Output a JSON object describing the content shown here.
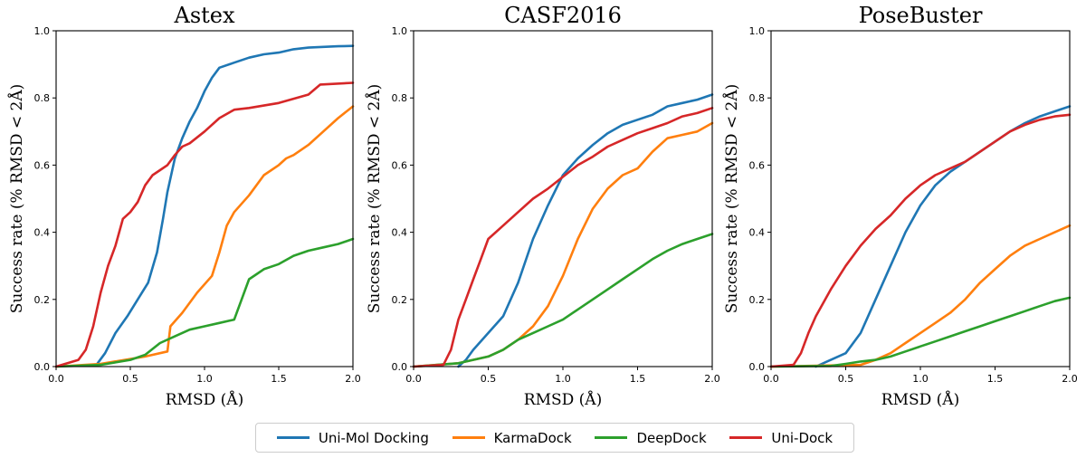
{
  "colors": {
    "uni_mol": "#1f77b4",
    "karma": "#ff7f0e",
    "deep": "#2ca02c",
    "uni_dock": "#d62728"
  },
  "legend": [
    {
      "name": "Uni-Mol Docking",
      "color": "#1f77b4"
    },
    {
      "name": "KarmaDock",
      "color": "#ff7f0e"
    },
    {
      "name": "DeepDock",
      "color": "#2ca02c"
    },
    {
      "name": "Uni-Dock",
      "color": "#d62728"
    }
  ],
  "chart_data": [
    {
      "type": "line",
      "title": "Astex",
      "xlabel": "RMSD (Å)",
      "ylabel": "Success rate (% RMSD < 2Å)",
      "xlim": [
        0,
        2
      ],
      "ylim": [
        0,
        1
      ],
      "xticks": [
        "0.0",
        "0.5",
        "1.0",
        "1.5",
        "2.0"
      ],
      "yticks": [
        "0.0",
        "0.2",
        "0.4",
        "0.6",
        "0.8",
        "1.0"
      ],
      "series": [
        {
          "name": "Uni-Mol Docking",
          "x": [
            0.28,
            0.33,
            0.4,
            0.48,
            0.55,
            0.62,
            0.68,
            0.72,
            0.75,
            0.8,
            0.85,
            0.9,
            0.95,
            1.0,
            1.05,
            1.1,
            1.2,
            1.3,
            1.4,
            1.5,
            1.6,
            1.7,
            1.8,
            1.9,
            2.0
          ],
          "y": [
            0.01,
            0.04,
            0.1,
            0.15,
            0.2,
            0.25,
            0.34,
            0.44,
            0.52,
            0.62,
            0.68,
            0.73,
            0.77,
            0.82,
            0.86,
            0.89,
            0.905,
            0.92,
            0.93,
            0.935,
            0.945,
            0.95,
            0.952,
            0.954,
            0.955
          ]
        },
        {
          "name": "KarmaDock",
          "x": [
            0.0,
            0.3,
            0.6,
            0.75,
            0.77,
            0.85,
            0.95,
            1.05,
            1.1,
            1.15,
            1.2,
            1.3,
            1.4,
            1.5,
            1.55,
            1.6,
            1.7,
            1.8,
            1.9,
            2.0
          ],
          "y": [
            0.0,
            0.008,
            0.03,
            0.045,
            0.12,
            0.16,
            0.22,
            0.27,
            0.34,
            0.42,
            0.46,
            0.51,
            0.57,
            0.6,
            0.62,
            0.63,
            0.66,
            0.7,
            0.74,
            0.775
          ]
        },
        {
          "name": "DeepDock",
          "x": [
            0.0,
            0.3,
            0.5,
            0.6,
            0.7,
            0.8,
            0.9,
            1.0,
            1.1,
            1.2,
            1.25,
            1.3,
            1.35,
            1.4,
            1.5,
            1.6,
            1.7,
            1.8,
            1.9,
            2.0
          ],
          "y": [
            0.0,
            0.005,
            0.02,
            0.035,
            0.07,
            0.09,
            0.11,
            0.12,
            0.13,
            0.14,
            0.2,
            0.26,
            0.275,
            0.29,
            0.305,
            0.33,
            0.345,
            0.355,
            0.365,
            0.38
          ]
        },
        {
          "name": "Uni-Dock",
          "x": [
            0.0,
            0.15,
            0.2,
            0.25,
            0.3,
            0.35,
            0.4,
            0.45,
            0.5,
            0.55,
            0.6,
            0.65,
            0.7,
            0.75,
            0.8,
            0.85,
            0.9,
            1.0,
            1.1,
            1.2,
            1.3,
            1.5,
            1.7,
            1.78,
            2.0
          ],
          "y": [
            0.0,
            0.02,
            0.05,
            0.12,
            0.22,
            0.3,
            0.36,
            0.44,
            0.46,
            0.49,
            0.54,
            0.57,
            0.585,
            0.6,
            0.63,
            0.655,
            0.665,
            0.7,
            0.74,
            0.765,
            0.77,
            0.785,
            0.81,
            0.84,
            0.845
          ]
        }
      ]
    },
    {
      "type": "line",
      "title": "CASF2016",
      "xlabel": "RMSD (Å)",
      "ylabel": "Success rate (% RMSD < 2Å)",
      "xlim": [
        0,
        2
      ],
      "ylim": [
        0,
        1
      ],
      "xticks": [
        "0.0",
        "0.5",
        "1.0",
        "1.5",
        "2.0"
      ],
      "yticks": [
        "0.0",
        "0.2",
        "0.4",
        "0.6",
        "0.8",
        "1.0"
      ],
      "series": [
        {
          "name": "Uni-Mol Docking",
          "x": [
            0.3,
            0.35,
            0.4,
            0.5,
            0.6,
            0.7,
            0.8,
            0.9,
            1.0,
            1.1,
            1.2,
            1.3,
            1.4,
            1.5,
            1.6,
            1.7,
            1.8,
            1.9,
            2.0
          ],
          "y": [
            0.0,
            0.02,
            0.05,
            0.1,
            0.15,
            0.25,
            0.38,
            0.48,
            0.57,
            0.62,
            0.66,
            0.695,
            0.72,
            0.735,
            0.75,
            0.775,
            0.785,
            0.795,
            0.81
          ]
        },
        {
          "name": "KarmaDock",
          "x": [
            0.0,
            0.3,
            0.5,
            0.6,
            0.7,
            0.8,
            0.9,
            1.0,
            1.1,
            1.2,
            1.3,
            1.4,
            1.5,
            1.6,
            1.7,
            1.8,
            1.9,
            2.0
          ],
          "y": [
            0.0,
            0.01,
            0.03,
            0.05,
            0.08,
            0.12,
            0.18,
            0.27,
            0.38,
            0.47,
            0.53,
            0.57,
            0.59,
            0.64,
            0.68,
            0.69,
            0.7,
            0.725
          ]
        },
        {
          "name": "DeepDock",
          "x": [
            0.0,
            0.3,
            0.5,
            0.6,
            0.7,
            0.8,
            0.9,
            1.0,
            1.1,
            1.2,
            1.3,
            1.4,
            1.5,
            1.6,
            1.7,
            1.8,
            1.9,
            2.0
          ],
          "y": [
            0.0,
            0.01,
            0.03,
            0.05,
            0.08,
            0.1,
            0.12,
            0.14,
            0.17,
            0.2,
            0.23,
            0.26,
            0.29,
            0.32,
            0.345,
            0.365,
            0.38,
            0.395
          ]
        },
        {
          "name": "Uni-Dock",
          "x": [
            0.0,
            0.2,
            0.25,
            0.3,
            0.35,
            0.4,
            0.45,
            0.5,
            0.6,
            0.7,
            0.8,
            0.9,
            1.0,
            1.1,
            1.2,
            1.3,
            1.4,
            1.5,
            1.6,
            1.7,
            1.8,
            1.9,
            2.0
          ],
          "y": [
            0.0,
            0.005,
            0.05,
            0.14,
            0.2,
            0.26,
            0.32,
            0.38,
            0.42,
            0.46,
            0.5,
            0.53,
            0.565,
            0.6,
            0.625,
            0.655,
            0.675,
            0.695,
            0.71,
            0.725,
            0.745,
            0.755,
            0.77
          ]
        }
      ]
    },
    {
      "type": "line",
      "title": "PoseBuster",
      "xlabel": "RMSD (Å)",
      "ylabel": "Success rate (% RMSD < 2Å)",
      "xlim": [
        0,
        2
      ],
      "ylim": [
        0,
        1
      ],
      "xticks": [
        "0.0",
        "0.5",
        "1.0",
        "1.5",
        "2.0"
      ],
      "yticks": [
        "0.0",
        "0.2",
        "0.4",
        "0.6",
        "0.8",
        "1.0"
      ],
      "series": [
        {
          "name": "Uni-Mol Docking",
          "x": [
            0.3,
            0.4,
            0.5,
            0.6,
            0.7,
            0.8,
            0.9,
            1.0,
            1.1,
            1.2,
            1.3,
            1.4,
            1.5,
            1.6,
            1.7,
            1.8,
            1.9,
            2.0
          ],
          "y": [
            0.0,
            0.02,
            0.04,
            0.1,
            0.2,
            0.3,
            0.4,
            0.48,
            0.54,
            0.58,
            0.61,
            0.64,
            0.67,
            0.7,
            0.725,
            0.745,
            0.76,
            0.775
          ]
        },
        {
          "name": "KarmaDock",
          "x": [
            0.0,
            0.6,
            0.7,
            0.8,
            0.9,
            1.0,
            1.1,
            1.2,
            1.3,
            1.4,
            1.5,
            1.6,
            1.7,
            1.8,
            1.9,
            2.0
          ],
          "y": [
            0.0,
            0.005,
            0.02,
            0.04,
            0.07,
            0.1,
            0.13,
            0.16,
            0.2,
            0.25,
            0.29,
            0.33,
            0.36,
            0.38,
            0.4,
            0.42
          ]
        },
        {
          "name": "DeepDock",
          "x": [
            0.0,
            0.4,
            0.5,
            0.6,
            0.7,
            0.8,
            0.9,
            1.0,
            1.1,
            1.2,
            1.3,
            1.4,
            1.5,
            1.6,
            1.7,
            1.8,
            1.9,
            2.0
          ],
          "y": [
            0.0,
            0.002,
            0.008,
            0.015,
            0.02,
            0.03,
            0.045,
            0.06,
            0.075,
            0.09,
            0.105,
            0.12,
            0.135,
            0.15,
            0.165,
            0.18,
            0.195,
            0.205
          ]
        },
        {
          "name": "Uni-Dock",
          "x": [
            0.0,
            0.15,
            0.2,
            0.25,
            0.3,
            0.4,
            0.5,
            0.6,
            0.7,
            0.8,
            0.9,
            1.0,
            1.1,
            1.2,
            1.3,
            1.4,
            1.5,
            1.6,
            1.7,
            1.8,
            1.9,
            2.0
          ],
          "y": [
            0.0,
            0.005,
            0.04,
            0.1,
            0.15,
            0.23,
            0.3,
            0.36,
            0.41,
            0.45,
            0.5,
            0.54,
            0.57,
            0.59,
            0.61,
            0.64,
            0.67,
            0.7,
            0.72,
            0.735,
            0.745,
            0.75
          ]
        }
      ]
    }
  ]
}
